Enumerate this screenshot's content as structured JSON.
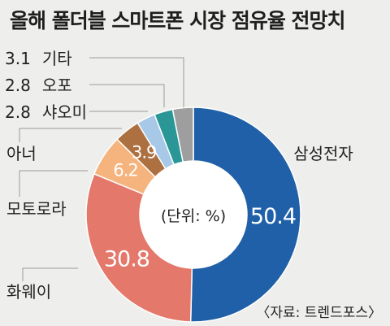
{
  "title": "올해 폴더블 스마트폰 시장 점유율 전망치",
  "source": "〈자료: 트렌드포스〉",
  "center_label": "(단위: %)",
  "chart_data": {
    "type": "pie",
    "unit": "%",
    "title": "올해 폴더블 스마트폰 시장 점유율 전망치",
    "slices": [
      {
        "name": "삼성전자",
        "value": 50.4,
        "value_label": "50.4",
        "color": "#2060a8"
      },
      {
        "name": "화웨이",
        "value": 30.8,
        "value_label": "30.8",
        "color": "#e4786a"
      },
      {
        "name": "모토로라",
        "value": 6.2,
        "value_label": "6.2",
        "color": "#f5b47d"
      },
      {
        "name": "아너",
        "value": 3.9,
        "value_label": "3.9",
        "color": "#ad7040"
      },
      {
        "name": "샤오미",
        "value": 2.8,
        "value_label": "2.8",
        "color": "#a8c8e8"
      },
      {
        "name": "오포",
        "value": 2.8,
        "value_label": "2.8",
        "color": "#2a9696"
      },
      {
        "name": "기타",
        "value": 3.1,
        "value_label": "3.1",
        "color": "#9e9e9e"
      }
    ]
  }
}
